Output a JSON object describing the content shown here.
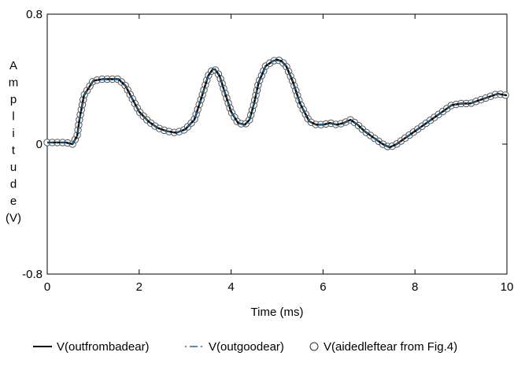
{
  "chart_data": {
    "type": "line",
    "title": "",
    "xlabel": "Time (ms)",
    "ylabel_chars": [
      "A",
      "m",
      "p",
      "l",
      "i",
      "t",
      "u",
      "d",
      "e",
      "(V)"
    ],
    "xlim": [
      0,
      10
    ],
    "ylim": [
      -0.8,
      0.8
    ],
    "x_ticks": [
      0,
      2,
      4,
      6,
      8,
      10
    ],
    "x_tick_labels": [
      "0",
      "2",
      "4",
      "6",
      "8",
      "10"
    ],
    "y_ticks": [
      0.8,
      0,
      -0.8
    ],
    "y_tick_labels": [
      "0.8",
      "0",
      "-0.8"
    ],
    "grid": false,
    "legend_position": "bottom",
    "x": [
      0,
      0.2,
      0.4,
      0.55,
      0.65,
      0.7,
      0.8,
      1.0,
      1.2,
      1.4,
      1.55,
      1.7,
      1.85,
      2.0,
      2.2,
      2.4,
      2.6,
      2.8,
      3.0,
      3.2,
      3.35,
      3.5,
      3.6,
      3.65,
      3.75,
      3.85,
      4.0,
      4.15,
      4.3,
      4.4,
      4.5,
      4.6,
      4.75,
      4.9,
      5.0,
      5.1,
      5.2,
      5.35,
      5.5,
      5.7,
      5.85,
      6.0,
      6.15,
      6.3,
      6.45,
      6.6,
      6.75,
      6.9,
      7.1,
      7.3,
      7.45,
      7.6,
      7.8,
      8.0,
      8.2,
      8.4,
      8.6,
      8.8,
      9.0,
      9.2,
      9.4,
      9.6,
      9.8,
      10.0
    ],
    "series": [
      {
        "name": "V(outfrombadear)",
        "color": "#000000",
        "style": "solid",
        "values": [
          0.01,
          0.01,
          0.01,
          0.0,
          0.05,
          0.15,
          0.3,
          0.39,
          0.4,
          0.4,
          0.4,
          0.36,
          0.28,
          0.2,
          0.14,
          0.1,
          0.08,
          0.07,
          0.09,
          0.15,
          0.28,
          0.42,
          0.46,
          0.46,
          0.42,
          0.33,
          0.2,
          0.13,
          0.12,
          0.15,
          0.25,
          0.38,
          0.48,
          0.51,
          0.52,
          0.51,
          0.48,
          0.38,
          0.25,
          0.14,
          0.12,
          0.12,
          0.13,
          0.12,
          0.13,
          0.15,
          0.12,
          0.08,
          0.04,
          0.0,
          -0.02,
          0.0,
          0.04,
          0.08,
          0.12,
          0.16,
          0.2,
          0.24,
          0.25,
          0.25,
          0.27,
          0.29,
          0.31,
          0.3
        ]
      },
      {
        "name": "V(outgoodear)",
        "color": "#1a6fa6",
        "style": "dashdot",
        "values": [
          0.01,
          0.01,
          0.01,
          0.0,
          0.05,
          0.15,
          0.3,
          0.39,
          0.4,
          0.4,
          0.4,
          0.36,
          0.28,
          0.2,
          0.14,
          0.1,
          0.08,
          0.07,
          0.09,
          0.15,
          0.28,
          0.42,
          0.46,
          0.46,
          0.42,
          0.33,
          0.2,
          0.13,
          0.12,
          0.15,
          0.25,
          0.38,
          0.48,
          0.51,
          0.52,
          0.51,
          0.48,
          0.38,
          0.25,
          0.14,
          0.12,
          0.12,
          0.13,
          0.12,
          0.13,
          0.15,
          0.12,
          0.08,
          0.04,
          0.0,
          -0.02,
          0.0,
          0.04,
          0.08,
          0.12,
          0.16,
          0.2,
          0.24,
          0.25,
          0.25,
          0.27,
          0.29,
          0.31,
          0.3
        ]
      },
      {
        "name": "V(aidedleftear from Fig.4)",
        "color": "#555555",
        "style": "circles",
        "values": [
          0.01,
          0.01,
          0.01,
          0.0,
          0.05,
          0.15,
          0.3,
          0.39,
          0.4,
          0.4,
          0.4,
          0.36,
          0.28,
          0.2,
          0.14,
          0.1,
          0.08,
          0.07,
          0.09,
          0.15,
          0.28,
          0.42,
          0.46,
          0.46,
          0.42,
          0.33,
          0.2,
          0.13,
          0.12,
          0.15,
          0.25,
          0.38,
          0.48,
          0.51,
          0.52,
          0.51,
          0.48,
          0.38,
          0.25,
          0.14,
          0.12,
          0.12,
          0.13,
          0.12,
          0.13,
          0.15,
          0.12,
          0.08,
          0.04,
          0.0,
          -0.02,
          0.0,
          0.04,
          0.08,
          0.12,
          0.16,
          0.2,
          0.24,
          0.25,
          0.25,
          0.27,
          0.29,
          0.31,
          0.3
        ]
      }
    ],
    "legend": [
      {
        "label": "V(outfrombadear)",
        "style": "solid"
      },
      {
        "label": "V(outgoodear)",
        "style": "dashdot"
      },
      {
        "label": "V(aidedleftear from Fig.4)",
        "style": "circles"
      }
    ]
  }
}
